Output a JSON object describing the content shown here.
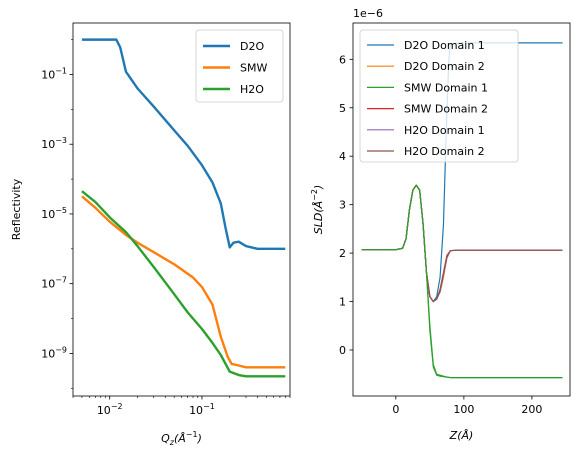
{
  "chart_data": [
    {
      "type": "line",
      "xscale": "log",
      "yscale": "log",
      "xlabel": "Q_z(Å^-1)",
      "xlabel_parts": [
        "Q",
        "z",
        "(Å",
        "−1",
        ")"
      ],
      "ylabel": "Reflectivity",
      "xlim": [
        0.004,
        0.9
      ],
      "ylim": [
        6e-11,
        3
      ],
      "xticks": [
        {
          "value": 0.01,
          "base": "10",
          "exp": "−2"
        },
        {
          "value": 0.1,
          "base": "10",
          "exp": "−1"
        }
      ],
      "yticks": [
        {
          "value": 1e-09,
          "base": "10",
          "exp": "−9"
        },
        {
          "value": 1e-07,
          "base": "10",
          "exp": "−7"
        },
        {
          "value": 1e-05,
          "base": "10",
          "exp": "−5"
        },
        {
          "value": 0.001,
          "base": "10",
          "exp": "−3"
        },
        {
          "value": 0.1,
          "base": "10",
          "exp": "−1"
        }
      ],
      "legend_position": "upper right",
      "series": [
        {
          "name": "D2O",
          "color": "#1f77b4",
          "x": [
            0.005,
            0.008,
            0.0118,
            0.013,
            0.015,
            0.02,
            0.03,
            0.05,
            0.07,
            0.1,
            0.13,
            0.16,
            0.18,
            0.2,
            0.22,
            0.25,
            0.3,
            0.4,
            0.6,
            0.8
          ],
          "y": [
            1,
            1,
            1,
            0.6,
            0.12,
            0.04,
            0.012,
            0.0025,
            0.0009,
            0.00025,
            8e-05,
            2e-05,
            4e-06,
            1.1e-06,
            1.5e-06,
            1.6e-06,
            1.2e-06,
            1e-06,
            1e-06,
            1e-06
          ]
        },
        {
          "name": "SMW",
          "color": "#ff7f0e",
          "x": [
            0.005,
            0.007,
            0.01,
            0.015,
            0.02,
            0.03,
            0.05,
            0.08,
            0.1,
            0.13,
            0.16,
            0.19,
            0.21,
            0.25,
            0.3,
            0.4,
            0.6,
            0.8
          ],
          "y": [
            3.2e-05,
            1.5e-05,
            6e-06,
            2.5e-06,
            1.5e-06,
            8e-07,
            3.6e-07,
            1.5e-07,
            8e-08,
            2.5e-08,
            3e-09,
            8e-10,
            5e-10,
            4.5e-10,
            4e-10,
            4e-10,
            4e-10,
            4e-10
          ]
        },
        {
          "name": "H2O",
          "color": "#2ca02c",
          "x": [
            0.005,
            0.007,
            0.01,
            0.015,
            0.02,
            0.03,
            0.05,
            0.07,
            0.1,
            0.13,
            0.16,
            0.2,
            0.25,
            0.3,
            0.4,
            0.6,
            0.8
          ],
          "y": [
            4.5e-05,
            2.2e-05,
            8e-06,
            3e-06,
            1.2e-06,
            3e-07,
            5e-08,
            1.5e-08,
            5e-09,
            2e-09,
            9e-10,
            3e-10,
            2.4e-10,
            2.2e-10,
            2.2e-10,
            2.2e-10,
            2.2e-10
          ]
        }
      ]
    },
    {
      "type": "line",
      "xlabel": "Z(Å)",
      "ylabel": "SLD(Å^-2)",
      "ylabel_parts": [
        "SLD(Å",
        "−2",
        ")"
      ],
      "offset_text": "1e−6",
      "xlim": [
        -63,
        256
      ],
      "ylim": [
        -0.95,
        6.75
      ],
      "xticks": [
        0,
        100,
        200
      ],
      "yticks": [
        0,
        1,
        2,
        3,
        4,
        5,
        6
      ],
      "legend_position": "upper left",
      "series": [
        {
          "name": "D2O Domain 1",
          "color": "#1f77b4",
          "x": [
            -50,
            0,
            10,
            15,
            20,
            25,
            30,
            35,
            40,
            45,
            50,
            55,
            60,
            65,
            70,
            73,
            76,
            78,
            80,
            85,
            100,
            150,
            200,
            245
          ],
          "y": [
            2.07,
            2.07,
            2.1,
            2.3,
            2.9,
            3.3,
            3.4,
            3.3,
            2.6,
            1.6,
            1.1,
            1.0,
            1.1,
            1.5,
            2.6,
            4.0,
            5.3,
            6.0,
            6.3,
            6.33,
            6.34,
            6.34,
            6.34,
            6.34
          ]
        },
        {
          "name": "D2O Domain 2",
          "color": "#ff7f0e",
          "x": [
            -50,
            0,
            10,
            15,
            20,
            25,
            30,
            35,
            40,
            45,
            50,
            55,
            60,
            65,
            70,
            75,
            80,
            90,
            100,
            150,
            200,
            245
          ],
          "y": [
            2.07,
            2.07,
            2.1,
            2.3,
            2.9,
            3.3,
            3.4,
            3.3,
            2.6,
            1.6,
            1.1,
            1.0,
            1.05,
            1.2,
            1.5,
            1.9,
            2.05,
            2.06,
            2.06,
            2.06,
            2.06,
            2.06
          ]
        },
        {
          "name": "SMW Domain 1",
          "color": "#2ca02c",
          "x": [
            -50,
            0,
            10,
            15,
            20,
            25,
            30,
            35,
            40,
            45,
            50,
            55,
            60,
            65,
            70,
            75,
            80,
            90,
            100,
            150,
            200,
            245
          ],
          "y": [
            2.07,
            2.07,
            2.1,
            2.3,
            2.9,
            3.3,
            3.4,
            3.3,
            2.6,
            1.6,
            0.5,
            -0.3,
            -0.5,
            -0.52,
            -0.54,
            -0.56,
            -0.57,
            -0.57,
            -0.57,
            -0.57,
            -0.57,
            -0.57
          ]
        },
        {
          "name": "SMW Domain 2",
          "color": "#d62728",
          "x": [
            -50,
            0,
            10,
            15,
            20,
            25,
            30,
            35,
            40,
            45,
            50,
            55,
            60,
            65,
            70,
            75,
            80,
            90,
            100,
            150,
            200,
            245
          ],
          "y": [
            2.07,
            2.07,
            2.1,
            2.3,
            2.9,
            3.3,
            3.4,
            3.3,
            2.6,
            1.6,
            1.1,
            1.0,
            1.05,
            1.25,
            1.6,
            1.95,
            2.05,
            2.06,
            2.06,
            2.06,
            2.06,
            2.06
          ]
        },
        {
          "name": "H2O Domain 1",
          "color": "#9467bd",
          "x": [
            -50,
            0,
            10,
            15,
            20,
            25,
            30,
            35,
            40,
            45,
            50,
            55,
            60,
            65,
            70,
            75,
            80,
            90,
            100,
            150,
            200,
            245
          ],
          "y": [
            2.07,
            2.07,
            2.1,
            2.3,
            2.9,
            3.3,
            3.4,
            3.3,
            2.6,
            1.6,
            1.1,
            1.0,
            1.05,
            1.2,
            1.55,
            1.9,
            2.05,
            2.06,
            2.06,
            2.06,
            2.06,
            2.06
          ]
        },
        {
          "name": "H2O Domain 2",
          "color": "#8c564b",
          "x": [
            -50,
            0,
            10,
            15,
            20,
            25,
            30,
            35,
            40,
            45,
            50,
            55,
            60,
            65,
            70,
            75,
            80,
            90,
            100,
            150,
            200,
            245
          ],
          "y": [
            2.07,
            2.07,
            2.1,
            2.3,
            2.9,
            3.3,
            3.4,
            3.3,
            2.6,
            1.6,
            1.1,
            1.0,
            1.05,
            1.22,
            1.58,
            1.92,
            2.05,
            2.06,
            2.06,
            2.06,
            2.06,
            2.06
          ]
        },
        {
          "name": "",
          "color": "#2ca02c",
          "legend": false,
          "x": [
            -50,
            0,
            10,
            15,
            20,
            25,
            30,
            35,
            40,
            45,
            50,
            55,
            60,
            65,
            70,
            75,
            80,
            90,
            100,
            150,
            200,
            245
          ],
          "y": [
            2.07,
            2.07,
            2.1,
            2.3,
            2.9,
            3.3,
            3.4,
            3.3,
            2.6,
            1.6,
            0.4,
            -0.35,
            -0.52,
            -0.54,
            -0.55,
            -0.56,
            -0.57,
            -0.57,
            -0.57,
            -0.57,
            -0.57,
            -0.57
          ]
        }
      ]
    }
  ]
}
